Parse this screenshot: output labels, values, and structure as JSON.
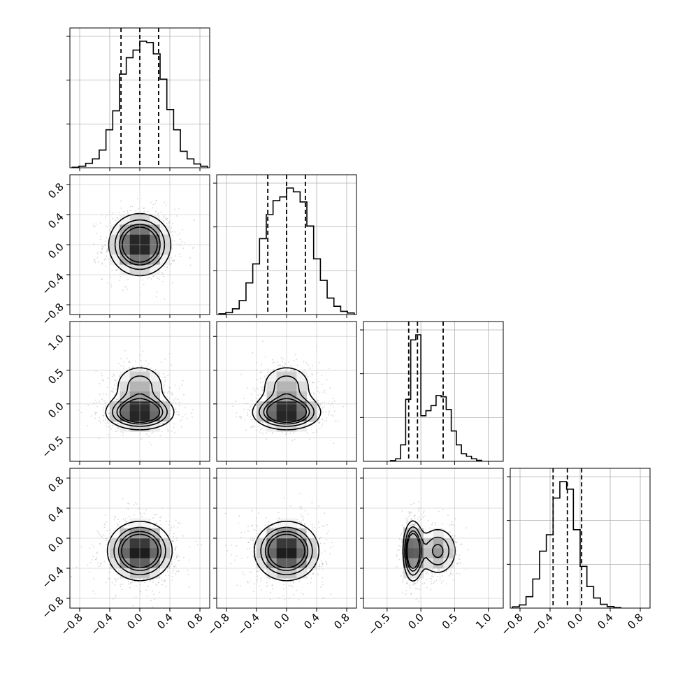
{
  "chart_data": {
    "type": "corner",
    "title": "",
    "grid": true,
    "n_params": 4,
    "param_ranges": [
      [
        -0.93,
        0.93
      ],
      [
        -0.93,
        0.93
      ],
      [
        -0.85,
        1.22
      ],
      [
        -0.93,
        0.93
      ]
    ],
    "ticks": [
      [
        -0.8,
        -0.4,
        0.0,
        0.4,
        0.8
      ],
      [
        -0.8,
        -0.4,
        0.0,
        0.4,
        0.8
      ],
      [
        -0.5,
        0.0,
        0.5,
        1.0
      ],
      [
        -0.8,
        -0.4,
        0.0,
        0.4,
        0.8
      ]
    ],
    "tick_labels": [
      [
        "−0.8",
        "−0.4",
        "0.0",
        "0.4",
        "0.8"
      ],
      [
        "−0.8",
        "−0.4",
        "0.0",
        "0.4",
        "0.8"
      ],
      [
        "−0.5",
        "0.0",
        "0.5",
        "1.0"
      ],
      [
        "−0.8",
        "−0.4",
        "0.0",
        "0.4",
        "0.8"
      ]
    ],
    "quantiles": [
      [
        -0.25,
        0.0,
        0.25
      ],
      [
        -0.25,
        0.0,
        0.25
      ],
      [
        -0.18,
        -0.05,
        0.33
      ],
      [
        -0.36,
        -0.17,
        0.02
      ]
    ],
    "histograms": [
      {
        "bin_start": -0.9,
        "bin_width": 0.09,
        "counts": [
          0.004,
          0.012,
          0.035,
          0.07,
          0.14,
          0.3,
          0.45,
          0.74,
          0.87,
          0.93,
          1.0,
          0.99,
          0.9,
          0.7,
          0.46,
          0.3,
          0.13,
          0.07,
          0.03,
          0.012
        ]
      },
      {
        "bin_start": -0.9,
        "bin_width": 0.09,
        "counts": [
          0.006,
          0.015,
          0.045,
          0.11,
          0.25,
          0.4,
          0.6,
          0.79,
          0.9,
          0.93,
          1.0,
          0.97,
          0.89,
          0.7,
          0.44,
          0.27,
          0.13,
          0.065,
          0.025,
          0.012
        ]
      },
      {
        "bin_start": -0.45,
        "bin_width": 0.075,
        "counts": [
          0.006,
          0.02,
          0.13,
          0.49,
          0.96,
          1.0,
          0.36,
          0.4,
          0.44,
          0.52,
          0.51,
          0.41,
          0.24,
          0.13,
          0.06,
          0.04,
          0.02,
          0.008
        ]
      },
      {
        "bin_start": -0.9,
        "bin_width": 0.09,
        "counts": [
          0.01,
          0.025,
          0.09,
          0.23,
          0.45,
          0.58,
          0.87,
          1.0,
          0.94,
          0.62,
          0.33,
          0.17,
          0.08,
          0.03,
          0.012,
          0.004
        ]
      }
    ],
    "pairs": [
      {
        "row": 1,
        "col": 0,
        "center": [
          0.0,
          0.0
        ],
        "spread": [
          0.23,
          0.23
        ],
        "levels": [
          0.2,
          0.36,
          0.5,
          0.6
        ]
      },
      {
        "row": 2,
        "col": 0,
        "center": [
          0.0,
          -0.13
        ],
        "spread": [
          0.25,
          0.14
        ],
        "upper_lobe": [
          0.0,
          0.28,
          0.22,
          0.2
        ],
        "levels": [
          0.2,
          0.36,
          0.5,
          0.6
        ]
      },
      {
        "row": 2,
        "col": 1,
        "center": [
          0.0,
          -0.13
        ],
        "spread": [
          0.25,
          0.14
        ],
        "upper_lobe": [
          0.0,
          0.28,
          0.22,
          0.2
        ],
        "levels": [
          0.2,
          0.36,
          0.5,
          0.6
        ]
      },
      {
        "row": 3,
        "col": 0,
        "center": [
          0.0,
          -0.17
        ],
        "spread": [
          0.24,
          0.22
        ],
        "levels": [
          0.2,
          0.36,
          0.5,
          0.6
        ]
      },
      {
        "row": 3,
        "col": 1,
        "center": [
          0.0,
          -0.17
        ],
        "spread": [
          0.24,
          0.22
        ],
        "levels": [
          0.2,
          0.36,
          0.5,
          0.6
        ]
      },
      {
        "row": 3,
        "col": 2,
        "center": [
          -0.12,
          -0.17
        ],
        "spread": [
          0.08,
          0.22
        ],
        "right_lobe": [
          0.25,
          -0.17,
          0.18,
          0.2
        ],
        "levels": [
          0.2,
          0.36,
          0.5,
          0.6
        ]
      }
    ],
    "colors": {
      "line": "#000000",
      "scatter": "#8a8a8a",
      "grid": "#b0b0b0"
    }
  }
}
